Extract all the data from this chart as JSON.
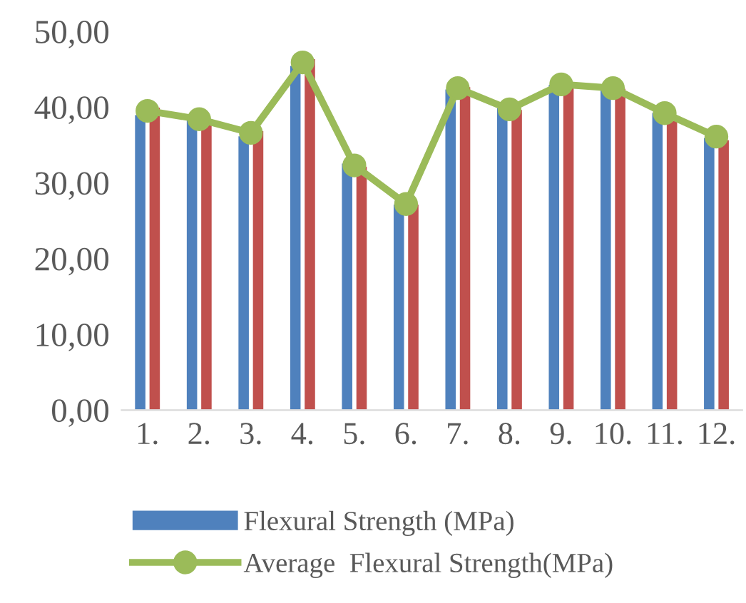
{
  "chart_data": {
    "type": "bar",
    "categories": [
      "1.",
      "2.",
      "3.",
      "4.",
      "5.",
      "6.",
      "7.",
      "8.",
      "9.",
      "10.",
      "11.",
      "12."
    ],
    "series": [
      {
        "name": "Flexural Strength (MPa)",
        "color": "#4f81bd",
        "values": [
          39.0,
          38.3,
          36.2,
          45.5,
          32.6,
          27.2,
          42.4,
          39.9,
          43.0,
          42.7,
          39.3,
          36.0
        ]
      },
      {
        "color": "#c0504d",
        "values": [
          40.0,
          37.7,
          36.9,
          46.4,
          32.2,
          27.2,
          42.7,
          39.7,
          42.9,
          42.5,
          38.2,
          35.7
        ]
      },
      {
        "name": "Average  Flexural Strength(MPa)",
        "type": "line",
        "color": "#9bbb59",
        "marker": "circle",
        "values": [
          39.5,
          38.4,
          36.6,
          45.9,
          32.3,
          27.2,
          42.5,
          39.7,
          43.0,
          42.5,
          39.2,
          36.1
        ]
      }
    ],
    "ylim": [
      0,
      50
    ],
    "yticks": [
      {
        "value": 0,
        "label": "0,00"
      },
      {
        "value": 10,
        "label": "10,00"
      },
      {
        "value": 20,
        "label": "20,00"
      },
      {
        "value": 30,
        "label": "30,00"
      },
      {
        "value": 40,
        "label": "40,00"
      },
      {
        "value": 50,
        "label": "50,00"
      }
    ],
    "grid": false,
    "legend": "bottom"
  }
}
